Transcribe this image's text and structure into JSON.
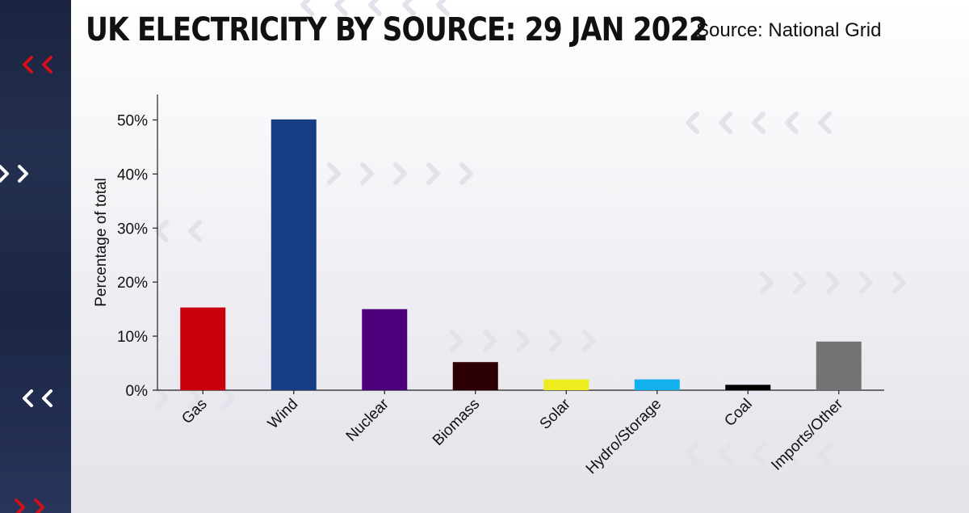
{
  "header": {
    "title": "UK ELECTRICITY BY SOURCE: 29 JAN 2022",
    "source": "Source: National Grid"
  },
  "colors": {
    "background": "#f2f1f5",
    "side_strip": "#1f2a48",
    "accent_red": "#d0101a",
    "decor_chevron": "#e3e2ea"
  },
  "chart_data": {
    "type": "bar",
    "title": "UK ELECTRICITY BY SOURCE: 29 JAN 2022",
    "xlabel": "",
    "ylabel": "Percentage of total",
    "ylim": [
      0,
      55
    ],
    "yticks": [
      0,
      10,
      20,
      30,
      40,
      50
    ],
    "ytick_labels": [
      "0%",
      "10%",
      "20%",
      "30%",
      "40%",
      "50%"
    ],
    "grid": false,
    "categories": [
      "Gas",
      "Wind",
      "Nuclear",
      "Biomass",
      "Solar",
      "Hydro/Storage",
      "Coal",
      "Imports/Other"
    ],
    "values": [
      15.3,
      50.1,
      15.0,
      5.2,
      2.0,
      2.0,
      1.0,
      9.0
    ],
    "bar_colors": [
      "#c8000b",
      "#173e84",
      "#4c007c",
      "#2c0004",
      "#ecec1e",
      "#12b0ec",
      "#000000",
      "#737373"
    ]
  }
}
